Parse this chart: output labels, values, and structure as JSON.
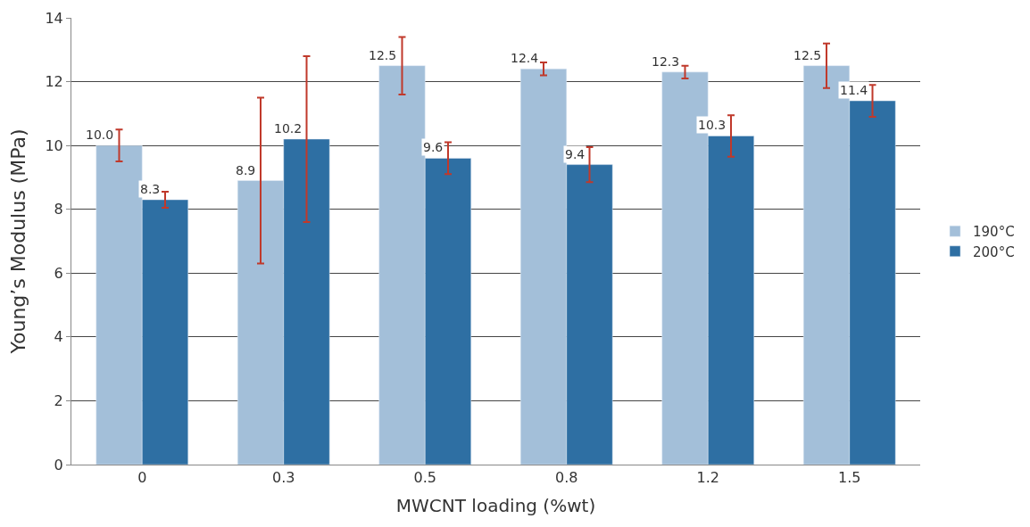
{
  "chart_data": {
    "type": "bar",
    "xlabel": "MWCNT loading (%wt)",
    "ylabel": "Young’s Modulus (MPa)",
    "categories": [
      "0",
      "0.3",
      "0.5",
      "0.8",
      "1.2",
      "1.5"
    ],
    "series": [
      {
        "name": "190°C",
        "color": "#a3bfd9",
        "values": [
          10.0,
          8.9,
          12.5,
          12.4,
          12.3,
          12.5
        ],
        "value_labels": [
          "10.0",
          "8.9",
          "12.5",
          "12.4",
          "12.3",
          "12.5"
        ],
        "errors": [
          0.5,
          2.6,
          0.9,
          0.2,
          0.2,
          0.7
        ]
      },
      {
        "name": "200°C",
        "color": "#2e6fa3",
        "values": [
          8.3,
          10.2,
          9.6,
          9.4,
          10.3,
          11.4
        ],
        "value_labels": [
          "8.3",
          "10.2",
          "9.6",
          "9.4",
          "10.3",
          "11.4"
        ],
        "errors": [
          0.25,
          2.6,
          0.5,
          0.55,
          0.65,
          0.5
        ]
      }
    ],
    "ylim": [
      0,
      14
    ],
    "yticks": [
      0,
      2,
      4,
      6,
      8,
      10,
      12,
      14
    ],
    "grid": "y",
    "legend": "right"
  }
}
